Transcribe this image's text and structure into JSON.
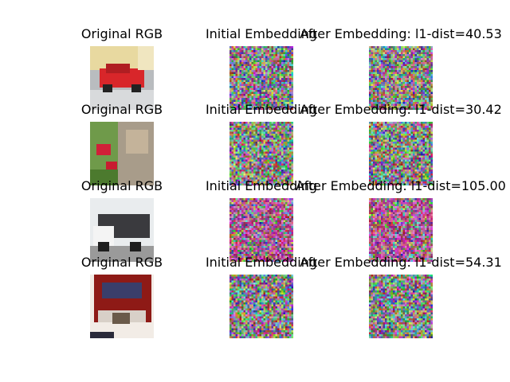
{
  "rows": [
    [
      "Original RGB",
      "Initial Embedding",
      "After Embedding: l1-dist=40.53"
    ],
    [
      "Original RGB",
      "Initial Embedding",
      "After Embedding: l1-dist=30.42"
    ],
    [
      "Original RGB",
      "Initial Embedding",
      "After Embedding: l1-dist=105.00"
    ],
    [
      "Original RGB",
      "Initial Embedding",
      "After Embedding: l1-dist=54.31"
    ]
  ]
}
